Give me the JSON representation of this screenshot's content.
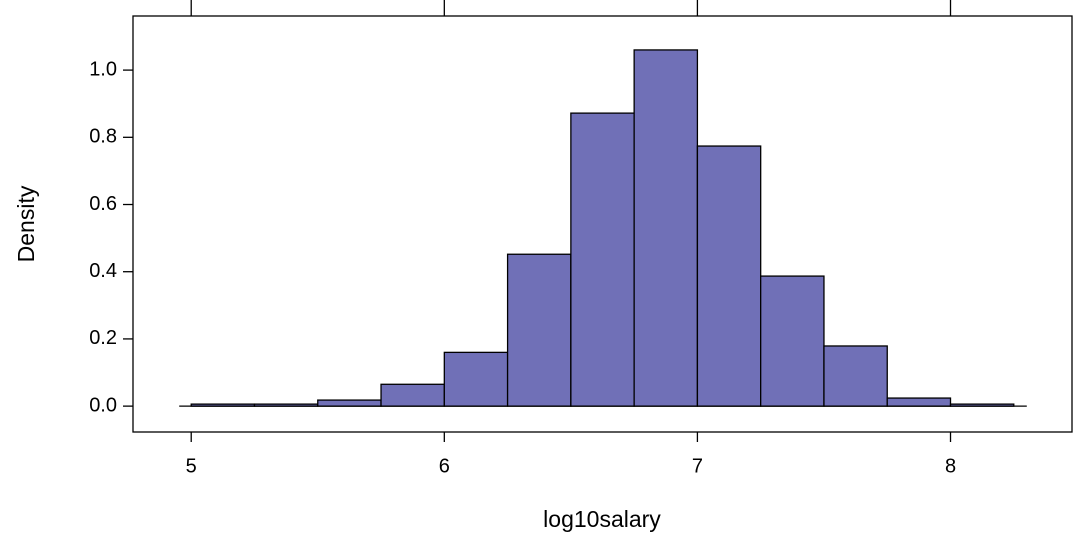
{
  "chart_data": {
    "type": "histogram",
    "x_label": "log10salary",
    "y_label": "Density",
    "bins": [
      5,
      5.25,
      5.5,
      5.75,
      6,
      6.25,
      6.5,
      6.75,
      7,
      7.25,
      7.5,
      7.75,
      8,
      8.25
    ],
    "values": [
      0.006,
      0.006,
      0.018,
      0.065,
      0.16,
      0.452,
      0.872,
      1.06,
      0.774,
      0.387,
      0.179,
      0.024,
      0.006
    ],
    "color": "#7070b7",
    "xlim": [
      4.77,
      8.48
    ],
    "xticks": [
      5,
      6,
      7,
      8
    ],
    "ylim": [
      -0.077,
      1.161
    ],
    "yticks": [
      {
        "value": 0,
        "label": "0.0"
      },
      0.2,
      0.4,
      0.6,
      0.8,
      {
        "value": 1,
        "label": "1.0"
      }
    ]
  }
}
